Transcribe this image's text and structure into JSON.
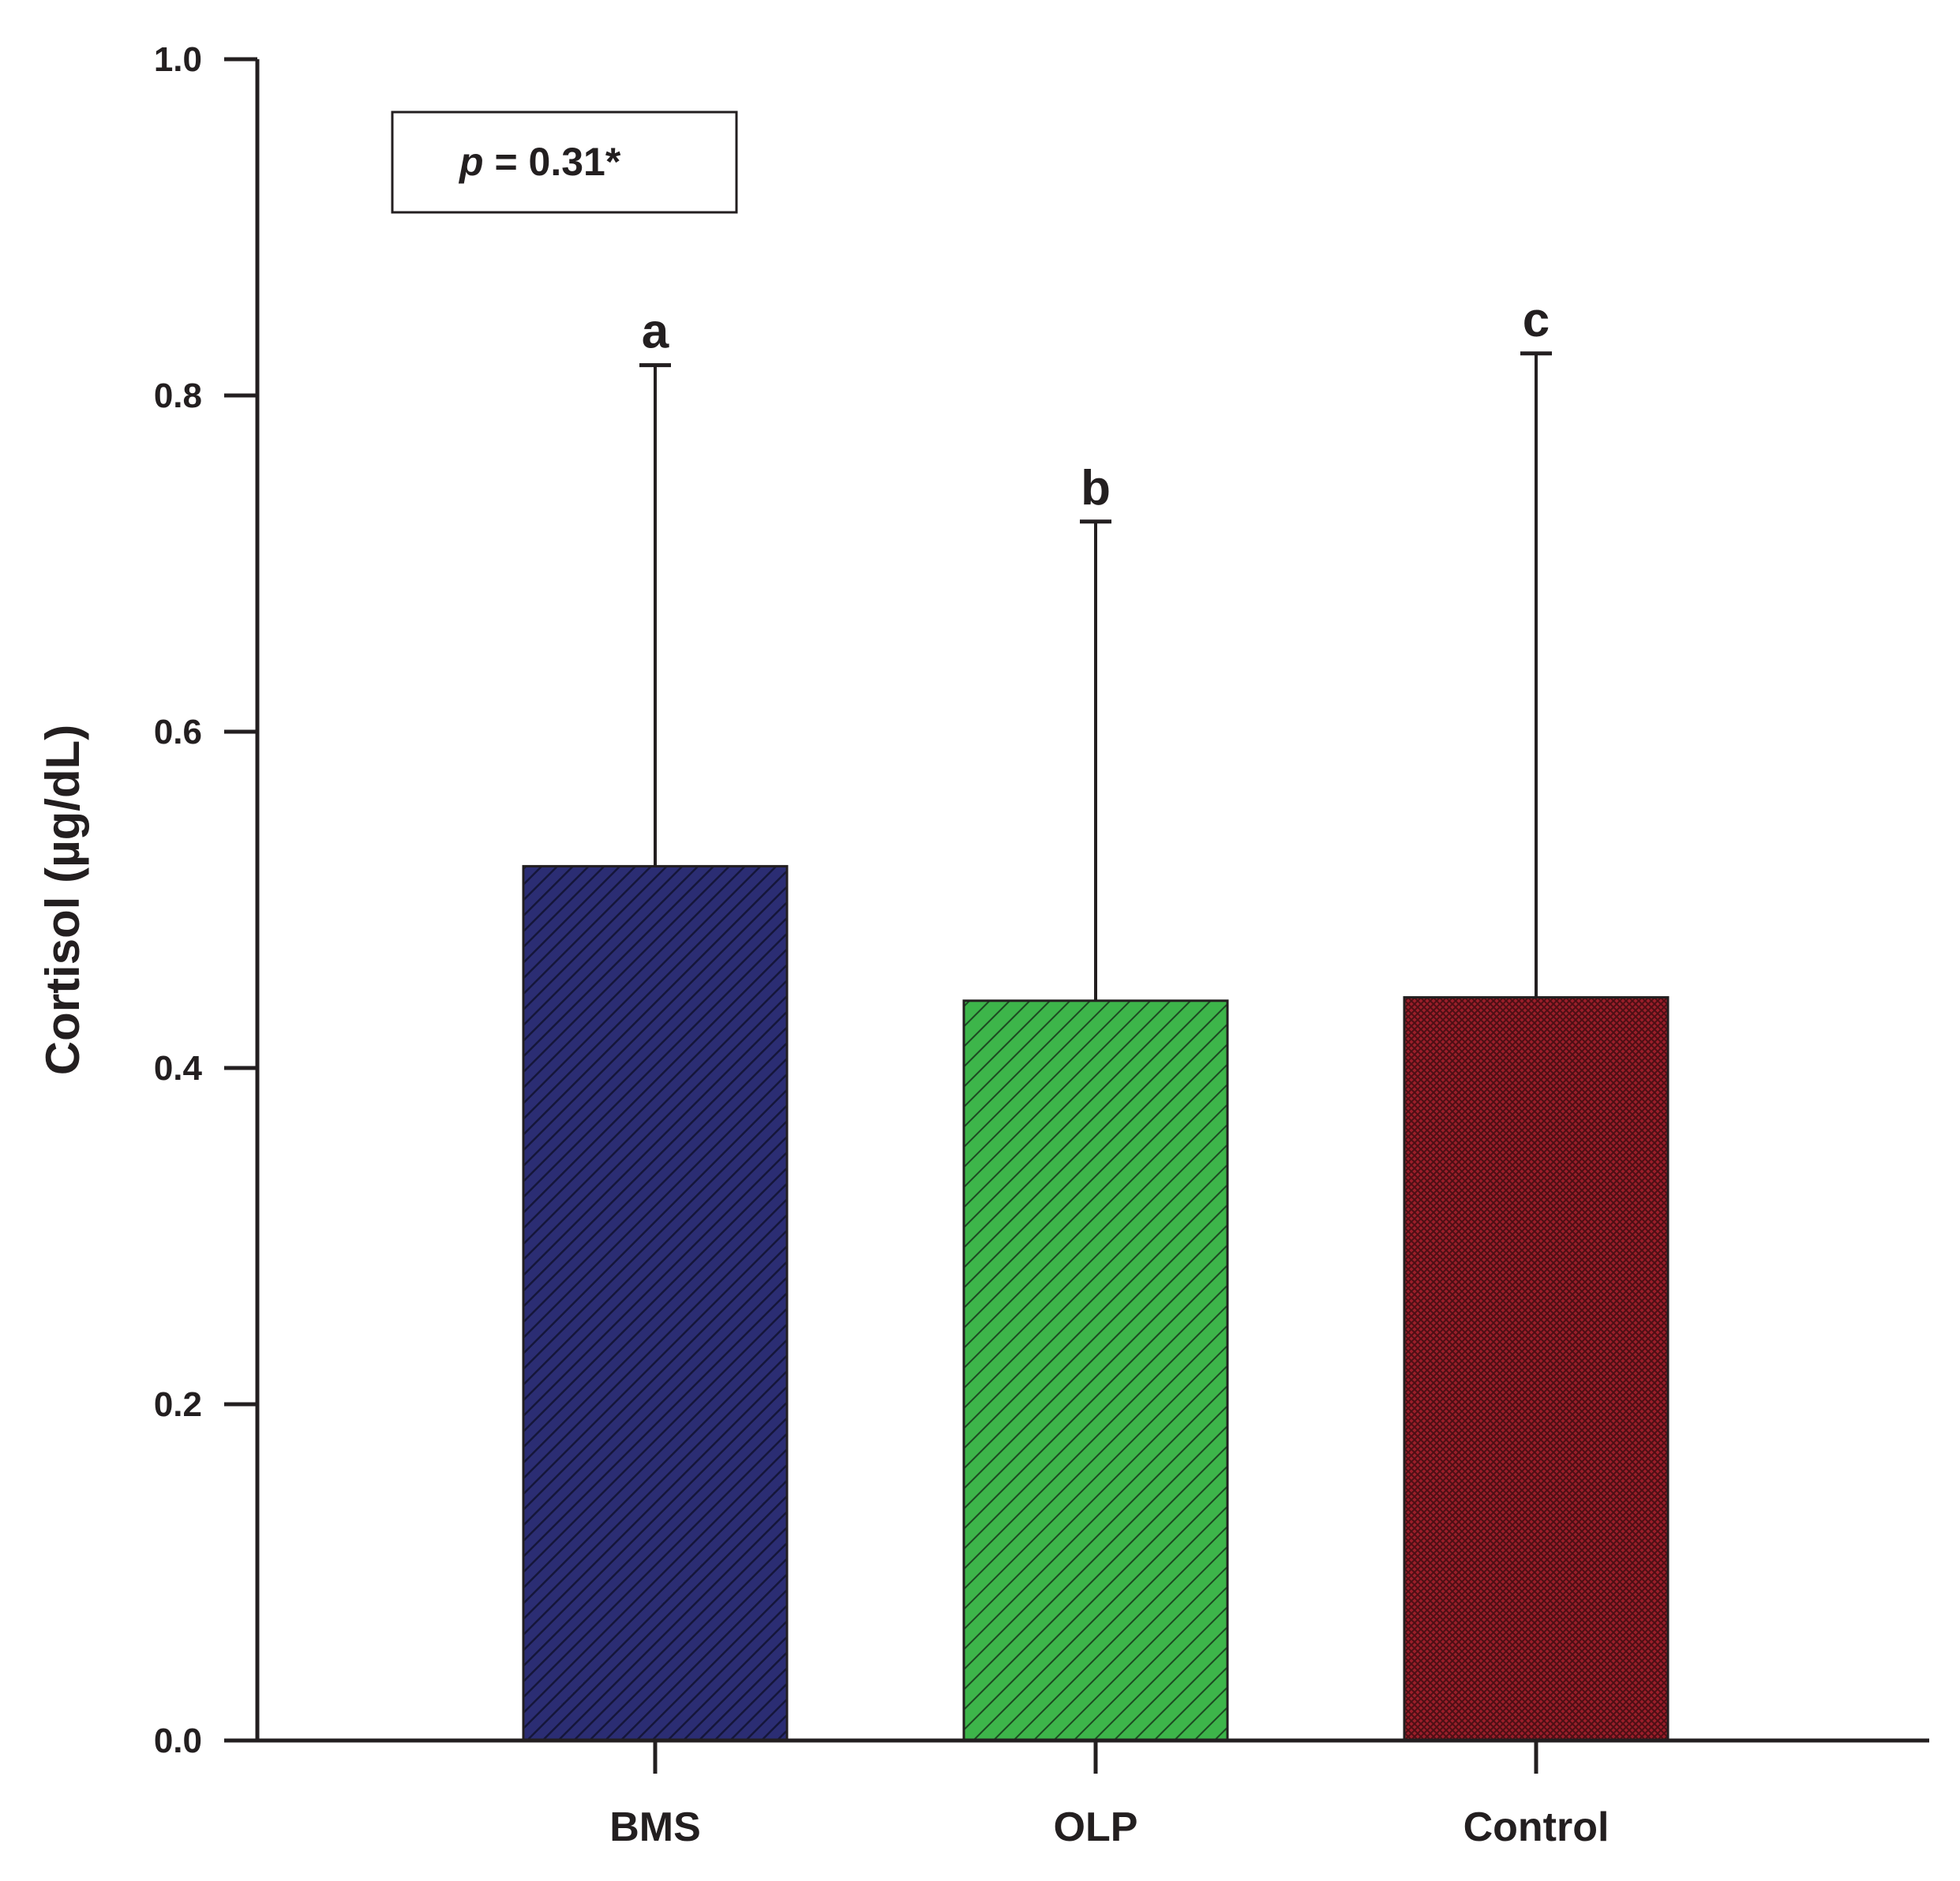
{
  "chart_data": {
    "type": "bar",
    "categories": [
      "BMS",
      "OLP",
      "Control"
    ],
    "values": [
      0.52,
      0.44,
      0.442
    ],
    "error_upper": [
      0.818,
      0.725,
      0.825
    ],
    "significance_letters": [
      "a",
      "b",
      "c"
    ],
    "bar_colors": [
      "#2b2d73",
      "#3db54a",
      "#8b1a24"
    ],
    "bar_patterns": [
      "dense-diagonal-hatch",
      "diagonal-hatch",
      "crosshatch"
    ],
    "ylabel": "Cortisol (µg/dL)",
    "ylim": [
      0,
      1.0
    ],
    "yticks": [
      "0.0",
      "0.2",
      "0.4",
      "0.6",
      "0.8",
      "1.0"
    ],
    "grid": false,
    "annotation": {
      "p_symbol": "p",
      "p_rest": " = 0.31*"
    }
  }
}
